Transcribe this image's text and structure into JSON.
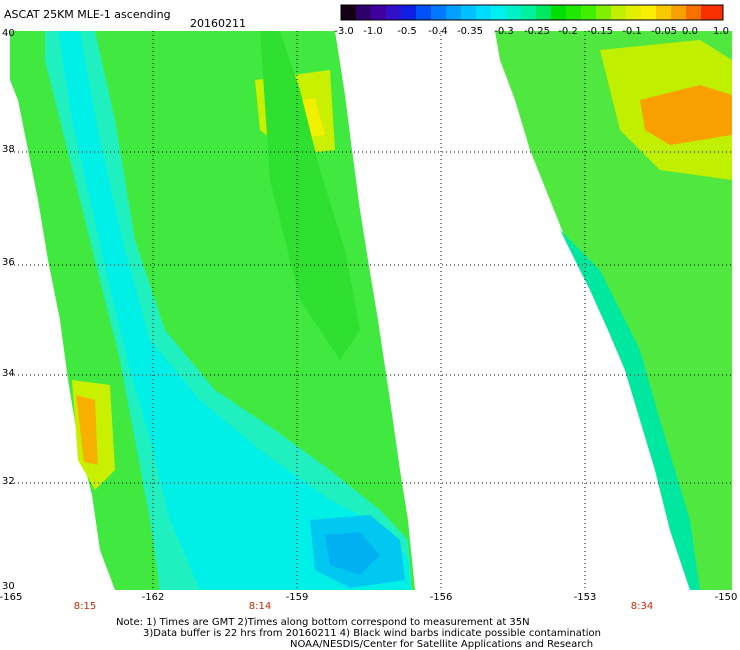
{
  "title": "ASCAT 25KM MLE-1 ascending",
  "date": "20160211",
  "colorbar": {
    "labels": [
      "-3.0",
      "-1.0",
      "-0.5",
      "-0.4",
      "-0.35",
      "-0.3",
      "-0.25",
      "-0.2",
      "-0.15",
      "-0.1",
      "-0.05",
      "0.0",
      "1.0"
    ],
    "colors": [
      "#140014",
      "#4000a0",
      "#1020e0",
      "#0078ff",
      "#00c0ff",
      "#00f0f0",
      "#00f0a0",
      "#00e000",
      "#40f000",
      "#c0f000",
      "#f8f000",
      "#f8a000",
      "#f83000"
    ]
  },
  "axes": {
    "lon_ticks": [
      "-165",
      "-162",
      "-159",
      "-156",
      "-153",
      "-150"
    ],
    "lat_ticks": [
      "40",
      "38",
      "36",
      "34",
      "32",
      "30"
    ],
    "lon_range": [
      -165,
      -150
    ],
    "lat_range": [
      30,
      40
    ]
  },
  "pass_times": [
    "8:15",
    "8:14",
    "8:34"
  ],
  "notes": {
    "line1": "Note: 1) Times are GMT 2)Times along bottom correspond to measurement at 35N",
    "line2": "3)Data buffer is 22 hrs from 20160211 4) Black wind barbs indicate possible contamination",
    "line3": "NOAA/NESDIS/Center for Satellite Applications and Research"
  }
}
